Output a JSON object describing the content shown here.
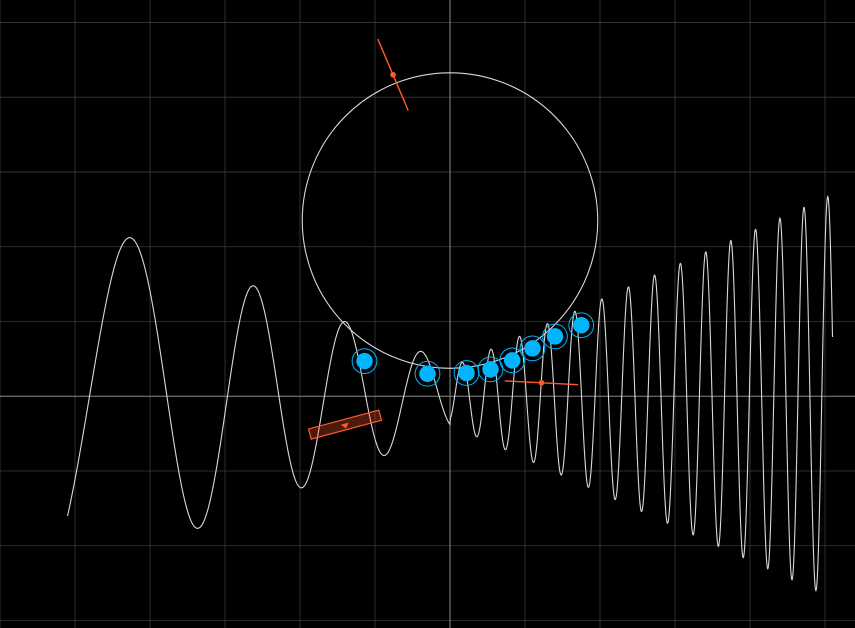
{
  "scene": {
    "background": "#000000",
    "grid_color": "#3a3a3a",
    "axis_color": "#8a8a8a",
    "curve_color": "#d9d9d9",
    "circle_color": "#d9d9d9",
    "accent_color": "#ff5a2a",
    "ball_color": "#00b4ff"
  },
  "world": {
    "x_range": [
      -6,
      5.4
    ],
    "y_range": [
      -3.1,
      5.3
    ],
    "grid_step": 1,
    "origin_visible": true
  },
  "wave": {
    "x_start": -5.1,
    "x_end": 5.1,
    "left": {
      "freq_at_origin": 7.0,
      "freq_at_edge": 2.3,
      "amp_at_origin": 0.45,
      "amp_at_edge": 2.45
    },
    "right": {
      "freq_at_origin": 16.0,
      "freq_at_edge": 20.0,
      "amp_at_origin": 0.38,
      "amp_at_edge": 2.7
    },
    "phase": -1.0
  },
  "circle": {
    "center": [
      0.0,
      2.35
    ],
    "radius": 1.97
  },
  "balls": {
    "description_icon": "ball-icon",
    "positions": [
      [
        -1.14,
        0.47
      ],
      [
        -0.3,
        0.3
      ],
      [
        0.22,
        0.31
      ],
      [
        0.54,
        0.36
      ],
      [
        0.83,
        0.48
      ],
      [
        1.1,
        0.64
      ],
      [
        1.4,
        0.8
      ],
      [
        1.75,
        0.95
      ]
    ],
    "radius": 0.11,
    "ring_radius": 0.165
  },
  "markers": [
    {
      "name": "circle-tangent-marker",
      "center": [
        -0.76,
        4.3
      ],
      "angle_deg": -67,
      "half_length": 0.52
    },
    {
      "name": "wave-tangent-marker",
      "center": [
        1.22,
        0.18
      ],
      "angle_deg": -3,
      "half_length": 0.49
    }
  ],
  "paddle": {
    "center": [
      -1.4,
      -0.38
    ],
    "width": 0.97,
    "height": 0.14,
    "angle_deg": 15
  }
}
